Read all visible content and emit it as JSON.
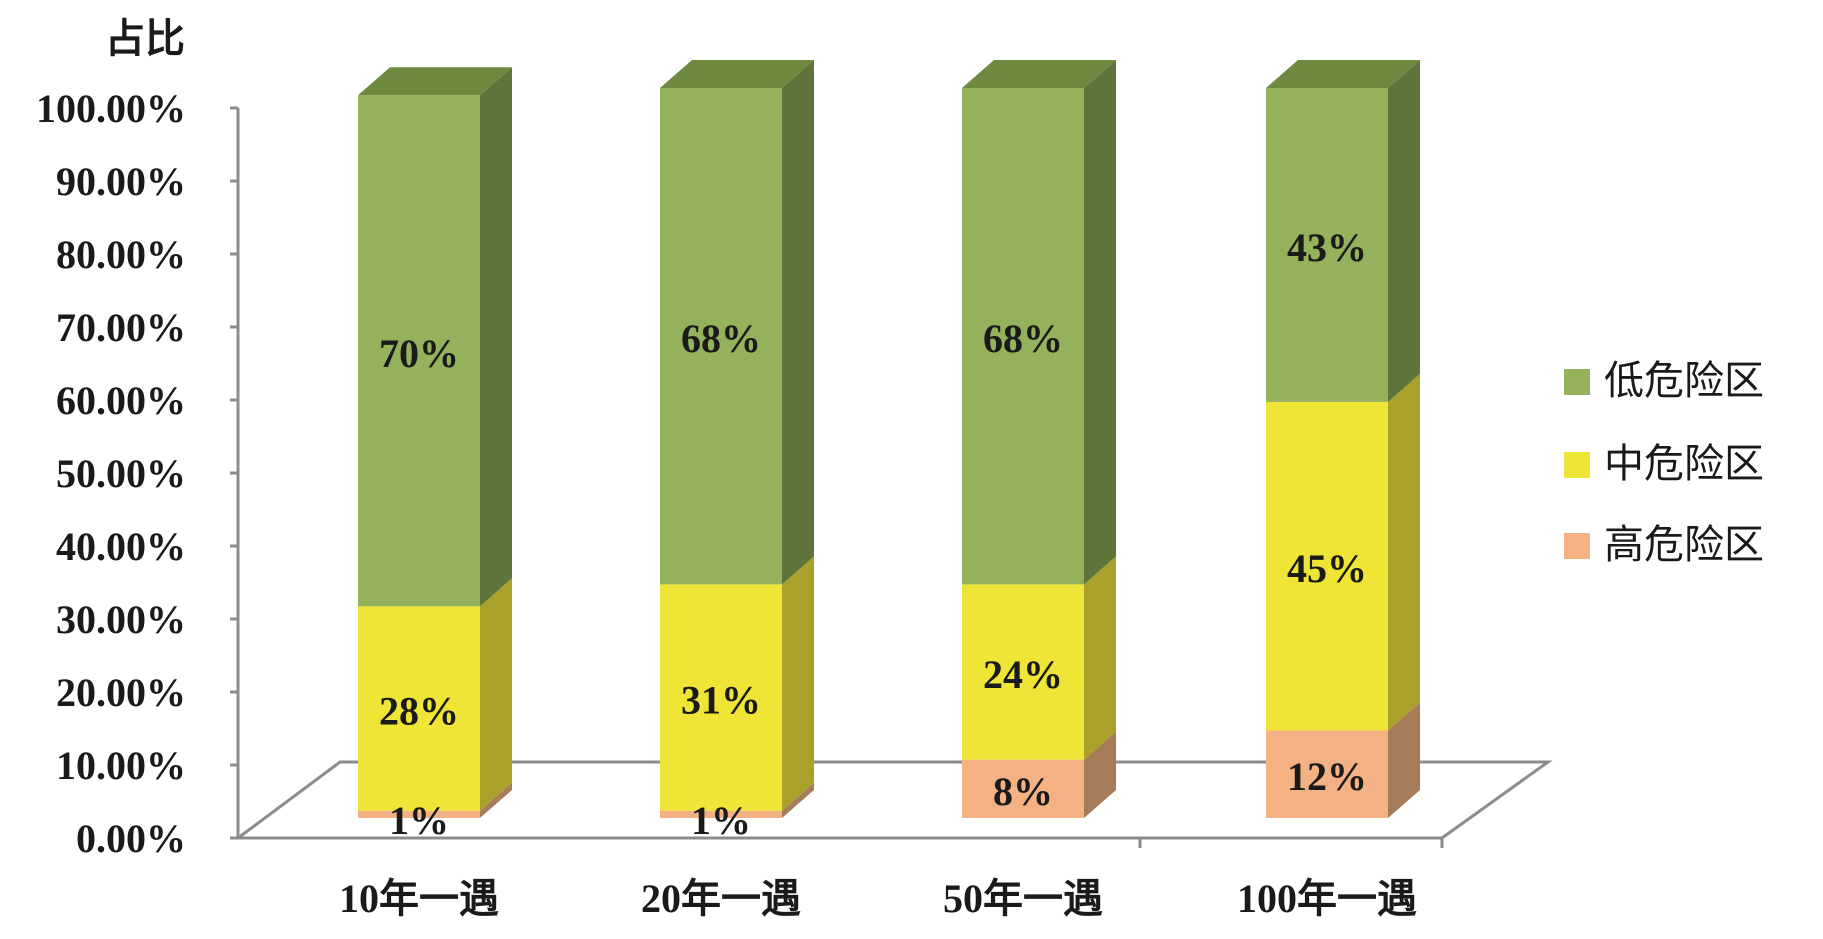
{
  "chart_data": {
    "type": "bar",
    "stacked": true,
    "three_d": true,
    "title": "",
    "ylabel": "占比",
    "xlabel": "",
    "ylim": [
      0,
      100
    ],
    "y_ticks": [
      "0.00%",
      "10.00%",
      "20.00%",
      "30.00%",
      "40.00%",
      "50.00%",
      "60.00%",
      "70.00%",
      "80.00%",
      "90.00%",
      "100.00%"
    ],
    "categories": [
      "10年一遇",
      "20年一遇",
      "50年一遇",
      "100年一遇"
    ],
    "series": [
      {
        "name": "高危险区",
        "values": [
          1,
          1,
          8,
          12
        ],
        "labels": [
          "1%",
          "1%",
          "8%",
          "12%"
        ],
        "color": "#F4B183",
        "side_color": "#A67C5B",
        "top_color": "#E7A77C"
      },
      {
        "name": "中危险区",
        "values": [
          28,
          31,
          24,
          45
        ],
        "labels": [
          "28%",
          "31%",
          "24%",
          "45%"
        ],
        "color": "#EEE536",
        "side_color": "#A9A12A",
        "top_color": "#C9C22E"
      },
      {
        "name": "低危险区",
        "values": [
          70,
          68,
          68,
          43
        ],
        "labels": [
          "70%",
          "68%",
          "68%",
          "43%"
        ],
        "color": "#93B25B",
        "side_color": "#5E743A",
        "top_color": "#6E8A40"
      }
    ],
    "legend": {
      "placement": "right",
      "order": [
        "低危险区",
        "中危险区",
        "高危险区"
      ]
    },
    "grid": false
  }
}
